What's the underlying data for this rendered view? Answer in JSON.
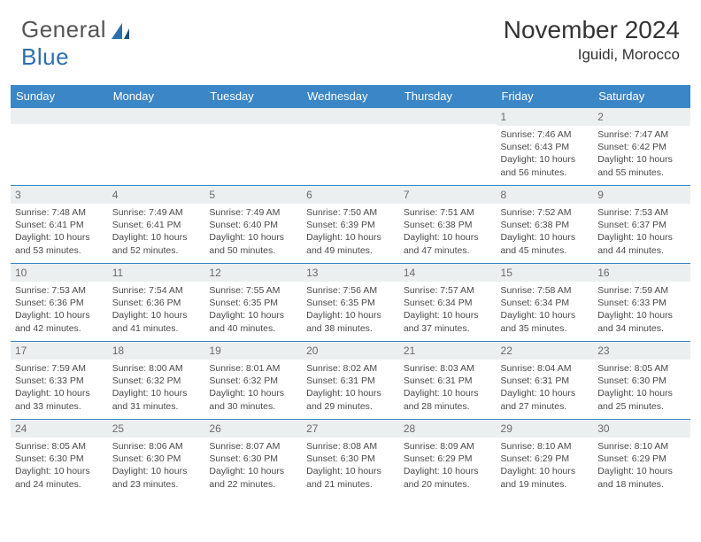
{
  "logo": {
    "text_gray": "General",
    "text_blue": "Blue"
  },
  "month_title": "November 2024",
  "location": "Iguidi, Morocco",
  "colors": {
    "header_bg": "#3b86c6",
    "header_fg": "#ffffff",
    "cell_border": "#3b86c6",
    "daynum_bg": "#eceff0",
    "daynum_fg": "#6a6a6a",
    "body_text": "#4a4a4a",
    "title_text": "#333333",
    "logo_gray": "#555555",
    "logo_blue": "#2b6fb0"
  },
  "day_headers": [
    "Sunday",
    "Monday",
    "Tuesday",
    "Wednesday",
    "Thursday",
    "Friday",
    "Saturday"
  ],
  "weeks": [
    [
      {
        "n": "",
        "sr": "",
        "ss": "",
        "dl": ""
      },
      {
        "n": "",
        "sr": "",
        "ss": "",
        "dl": ""
      },
      {
        "n": "",
        "sr": "",
        "ss": "",
        "dl": ""
      },
      {
        "n": "",
        "sr": "",
        "ss": "",
        "dl": ""
      },
      {
        "n": "",
        "sr": "",
        "ss": "",
        "dl": ""
      },
      {
        "n": "1",
        "sr": "Sunrise: 7:46 AM",
        "ss": "Sunset: 6:43 PM",
        "dl": "Daylight: 10 hours and 56 minutes."
      },
      {
        "n": "2",
        "sr": "Sunrise: 7:47 AM",
        "ss": "Sunset: 6:42 PM",
        "dl": "Daylight: 10 hours and 55 minutes."
      }
    ],
    [
      {
        "n": "3",
        "sr": "Sunrise: 7:48 AM",
        "ss": "Sunset: 6:41 PM",
        "dl": "Daylight: 10 hours and 53 minutes."
      },
      {
        "n": "4",
        "sr": "Sunrise: 7:49 AM",
        "ss": "Sunset: 6:41 PM",
        "dl": "Daylight: 10 hours and 52 minutes."
      },
      {
        "n": "5",
        "sr": "Sunrise: 7:49 AM",
        "ss": "Sunset: 6:40 PM",
        "dl": "Daylight: 10 hours and 50 minutes."
      },
      {
        "n": "6",
        "sr": "Sunrise: 7:50 AM",
        "ss": "Sunset: 6:39 PM",
        "dl": "Daylight: 10 hours and 49 minutes."
      },
      {
        "n": "7",
        "sr": "Sunrise: 7:51 AM",
        "ss": "Sunset: 6:38 PM",
        "dl": "Daylight: 10 hours and 47 minutes."
      },
      {
        "n": "8",
        "sr": "Sunrise: 7:52 AM",
        "ss": "Sunset: 6:38 PM",
        "dl": "Daylight: 10 hours and 45 minutes."
      },
      {
        "n": "9",
        "sr": "Sunrise: 7:53 AM",
        "ss": "Sunset: 6:37 PM",
        "dl": "Daylight: 10 hours and 44 minutes."
      }
    ],
    [
      {
        "n": "10",
        "sr": "Sunrise: 7:53 AM",
        "ss": "Sunset: 6:36 PM",
        "dl": "Daylight: 10 hours and 42 minutes."
      },
      {
        "n": "11",
        "sr": "Sunrise: 7:54 AM",
        "ss": "Sunset: 6:36 PM",
        "dl": "Daylight: 10 hours and 41 minutes."
      },
      {
        "n": "12",
        "sr": "Sunrise: 7:55 AM",
        "ss": "Sunset: 6:35 PM",
        "dl": "Daylight: 10 hours and 40 minutes."
      },
      {
        "n": "13",
        "sr": "Sunrise: 7:56 AM",
        "ss": "Sunset: 6:35 PM",
        "dl": "Daylight: 10 hours and 38 minutes."
      },
      {
        "n": "14",
        "sr": "Sunrise: 7:57 AM",
        "ss": "Sunset: 6:34 PM",
        "dl": "Daylight: 10 hours and 37 minutes."
      },
      {
        "n": "15",
        "sr": "Sunrise: 7:58 AM",
        "ss": "Sunset: 6:34 PM",
        "dl": "Daylight: 10 hours and 35 minutes."
      },
      {
        "n": "16",
        "sr": "Sunrise: 7:59 AM",
        "ss": "Sunset: 6:33 PM",
        "dl": "Daylight: 10 hours and 34 minutes."
      }
    ],
    [
      {
        "n": "17",
        "sr": "Sunrise: 7:59 AM",
        "ss": "Sunset: 6:33 PM",
        "dl": "Daylight: 10 hours and 33 minutes."
      },
      {
        "n": "18",
        "sr": "Sunrise: 8:00 AM",
        "ss": "Sunset: 6:32 PM",
        "dl": "Daylight: 10 hours and 31 minutes."
      },
      {
        "n": "19",
        "sr": "Sunrise: 8:01 AM",
        "ss": "Sunset: 6:32 PM",
        "dl": "Daylight: 10 hours and 30 minutes."
      },
      {
        "n": "20",
        "sr": "Sunrise: 8:02 AM",
        "ss": "Sunset: 6:31 PM",
        "dl": "Daylight: 10 hours and 29 minutes."
      },
      {
        "n": "21",
        "sr": "Sunrise: 8:03 AM",
        "ss": "Sunset: 6:31 PM",
        "dl": "Daylight: 10 hours and 28 minutes."
      },
      {
        "n": "22",
        "sr": "Sunrise: 8:04 AM",
        "ss": "Sunset: 6:31 PM",
        "dl": "Daylight: 10 hours and 27 minutes."
      },
      {
        "n": "23",
        "sr": "Sunrise: 8:05 AM",
        "ss": "Sunset: 6:30 PM",
        "dl": "Daylight: 10 hours and 25 minutes."
      }
    ],
    [
      {
        "n": "24",
        "sr": "Sunrise: 8:05 AM",
        "ss": "Sunset: 6:30 PM",
        "dl": "Daylight: 10 hours and 24 minutes."
      },
      {
        "n": "25",
        "sr": "Sunrise: 8:06 AM",
        "ss": "Sunset: 6:30 PM",
        "dl": "Daylight: 10 hours and 23 minutes."
      },
      {
        "n": "26",
        "sr": "Sunrise: 8:07 AM",
        "ss": "Sunset: 6:30 PM",
        "dl": "Daylight: 10 hours and 22 minutes."
      },
      {
        "n": "27",
        "sr": "Sunrise: 8:08 AM",
        "ss": "Sunset: 6:30 PM",
        "dl": "Daylight: 10 hours and 21 minutes."
      },
      {
        "n": "28",
        "sr": "Sunrise: 8:09 AM",
        "ss": "Sunset: 6:29 PM",
        "dl": "Daylight: 10 hours and 20 minutes."
      },
      {
        "n": "29",
        "sr": "Sunrise: 8:10 AM",
        "ss": "Sunset: 6:29 PM",
        "dl": "Daylight: 10 hours and 19 minutes."
      },
      {
        "n": "30",
        "sr": "Sunrise: 8:10 AM",
        "ss": "Sunset: 6:29 PM",
        "dl": "Daylight: 10 hours and 18 minutes."
      }
    ]
  ]
}
